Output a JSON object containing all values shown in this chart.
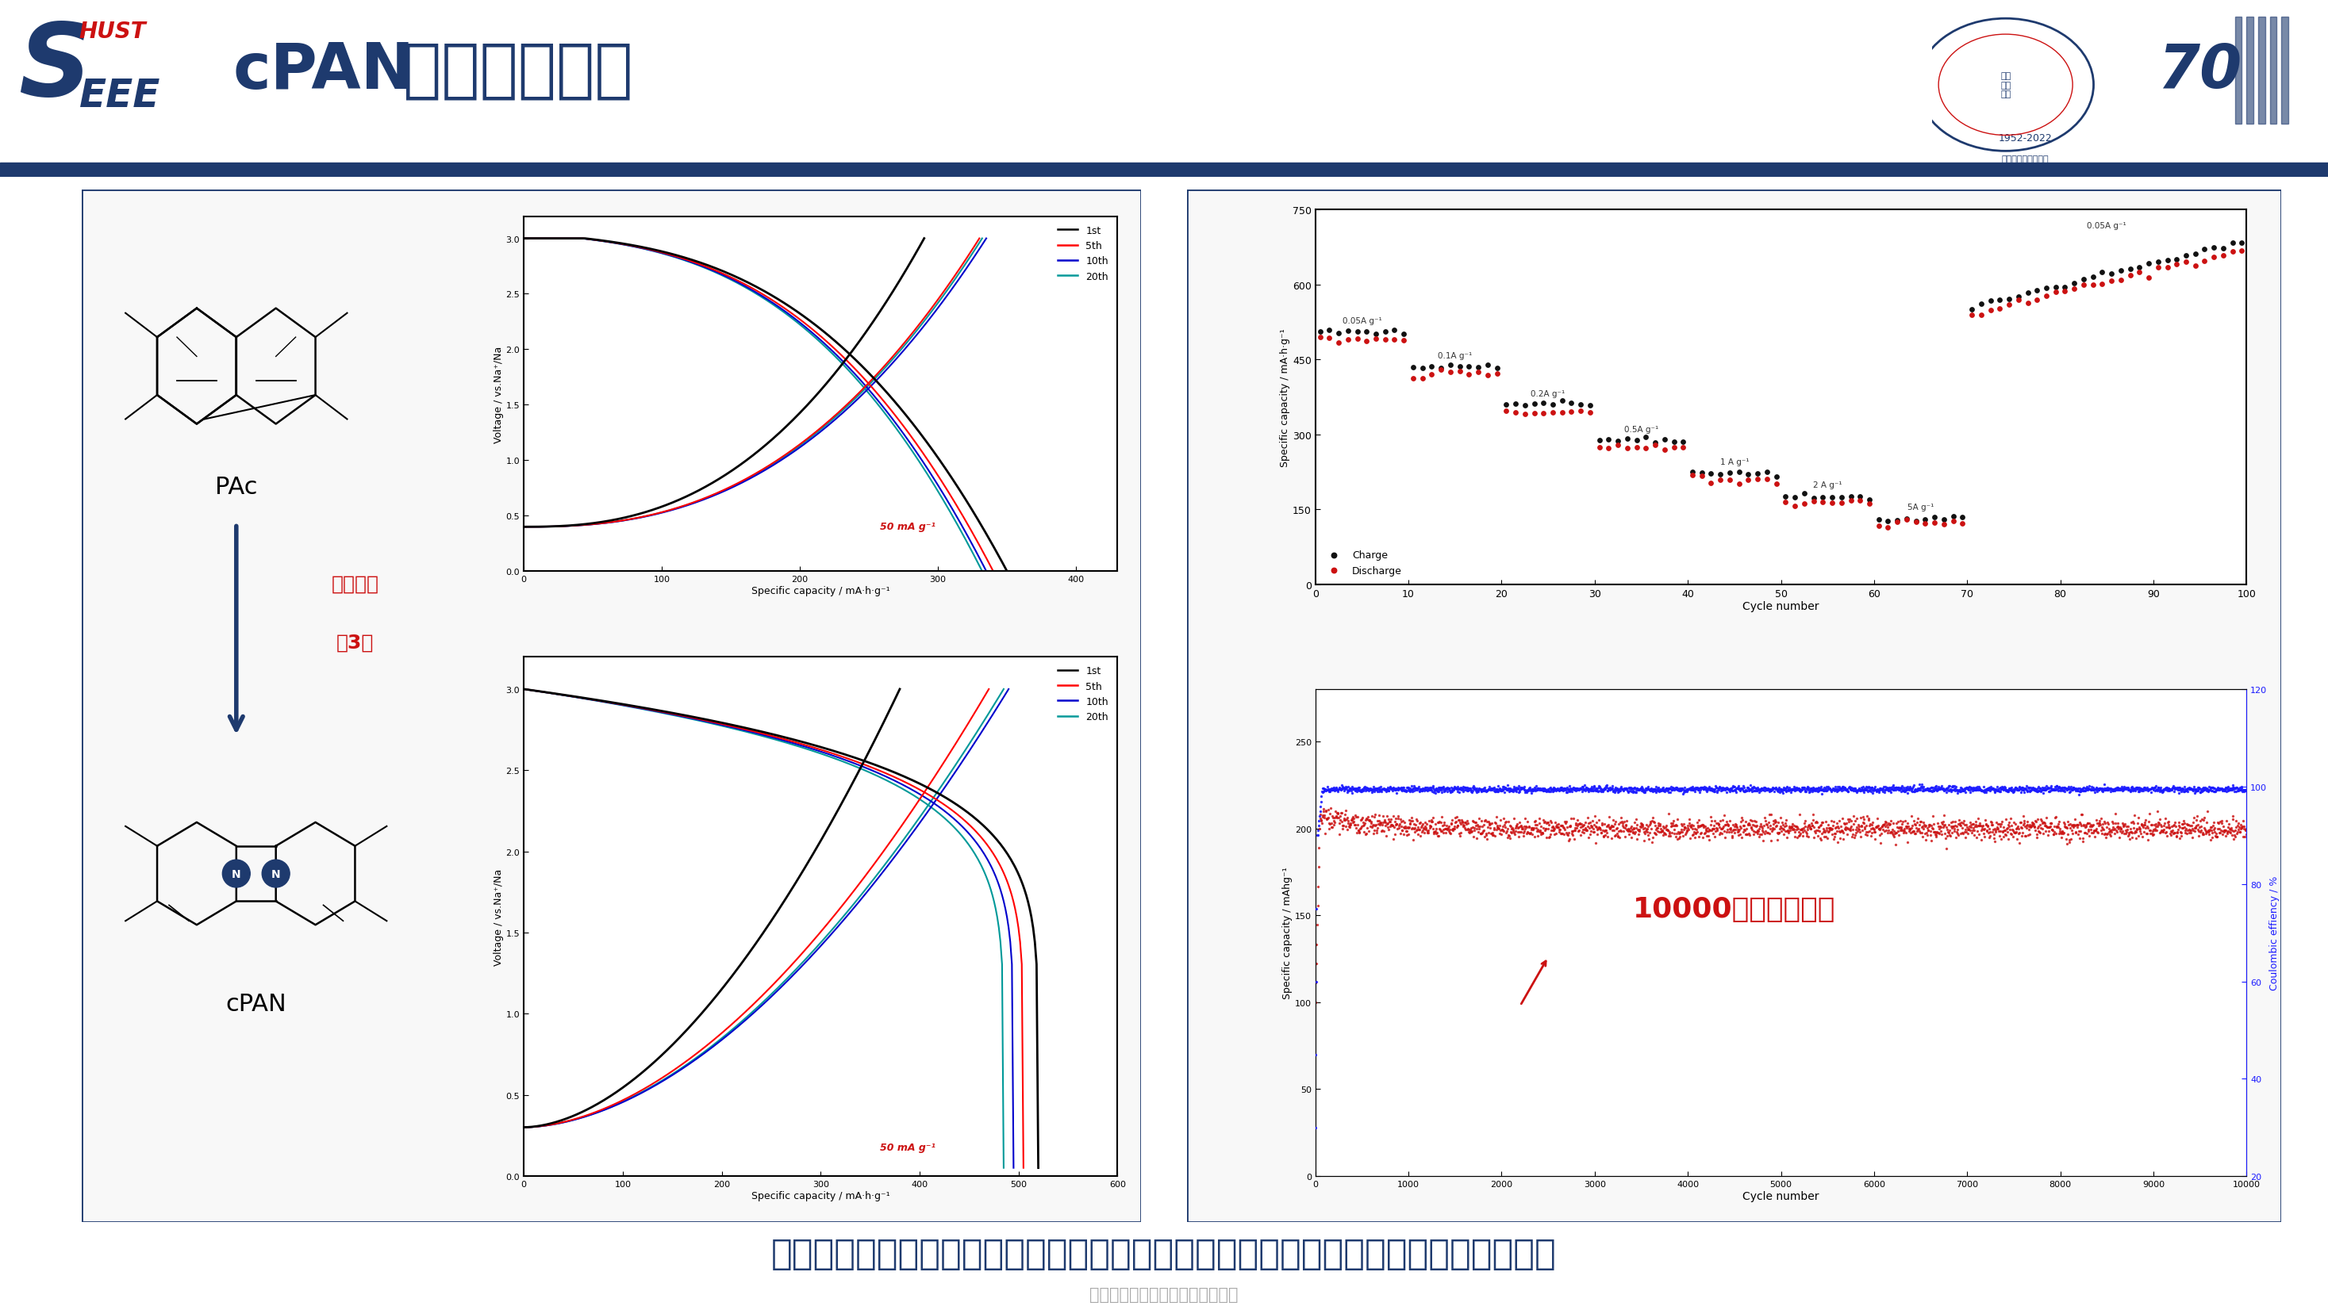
{
  "title_cpan": "cPAN",
  "title_cn": "的电化学性能",
  "bg_color": "#ffffff",
  "header_bar_color": "#1e3a6e",
  "panel_border_color": "#1e3a6e",
  "bottom_text": "杂环梯形纳米纤维的电化学性能大幅度提升，表现出优异的倍率性能及长循环稳定性",
  "sub_text": "中国电工技术学会新媒体平台发布",
  "pac_label": "PAc",
  "cpan_label": "cPAN",
  "arrow_text1": "容量提升",
  "arrow_text2": "近3倍",
  "cycle_label": "10000次长循环寿命",
  "top_chart": {
    "xlabel": "Specific capacity / mA·h·g⁻¹",
    "ylabel": "Voltage / vs.Na⁺/Na",
    "xlim": [
      0,
      430
    ],
    "ylim": [
      0.0,
      3.2
    ],
    "xticks": [
      0,
      100,
      200,
      300,
      400
    ],
    "yticks": [
      0.0,
      0.5,
      1.0,
      1.5,
      2.0,
      2.5,
      3.0
    ],
    "legend": [
      "1st",
      "5th",
      "10th",
      "20th"
    ],
    "legend_colors": [
      "#000000",
      "#ff0000",
      "#0000cc",
      "#009999"
    ],
    "note": "50 mA g⁻¹"
  },
  "bottom_chart": {
    "xlabel": "Specific capacity / mA·h·g⁻¹",
    "ylabel": "Voltage / vs.Na⁺/Na",
    "xlim": [
      0,
      600
    ],
    "ylim": [
      0.0,
      3.2
    ],
    "xticks": [
      0,
      100,
      200,
      300,
      400,
      500,
      600
    ],
    "yticks": [
      0.0,
      0.5,
      1.0,
      1.5,
      2.0,
      2.5,
      3.0
    ],
    "legend": [
      "1st",
      "5th",
      "10th",
      "20th"
    ],
    "legend_colors": [
      "#000000",
      "#ff0000",
      "#0000cc",
      "#009999"
    ],
    "note": "50 mA g⁻¹"
  },
  "rate_chart": {
    "xlabel": "Cycle number",
    "ylabel": "Specific capacity / mA·h·g⁻¹",
    "xlim": [
      0,
      100
    ],
    "ylim": [
      0,
      750
    ],
    "yticks": [
      0,
      150,
      300,
      450,
      600,
      750
    ],
    "xticks": [
      0,
      10,
      20,
      30,
      40,
      50,
      60,
      70,
      80,
      90,
      100
    ],
    "rate_labels": [
      "0.05A g⁻¹",
      "0.1A g⁻¹",
      "0.2A g⁻¹",
      "0.5A g⁻¹",
      "1 A g⁻¹",
      "2 A g⁻¹",
      "5A g⁻¹",
      "0.05A g⁻¹"
    ],
    "legend_charge": "Charge",
    "legend_discharge": "Discharge"
  },
  "long_cycle_chart": {
    "xlabel": "Cycle number",
    "ylabel_left": "Specific capacity / mAhg⁻¹",
    "ylabel_right": "Coulombic effiency / %",
    "xlim": [
      0,
      10000
    ],
    "ylim_left": [
      0,
      280
    ],
    "ylim_right": [
      20,
      120
    ],
    "xticks": [
      0,
      1000,
      2000,
      3000,
      4000,
      5000,
      6000,
      7000,
      8000,
      9000,
      10000
    ],
    "yticks_left": [
      0,
      50,
      100,
      150,
      200,
      250
    ],
    "yticks_right": [
      20,
      40,
      60,
      80,
      100,
      120
    ]
  }
}
